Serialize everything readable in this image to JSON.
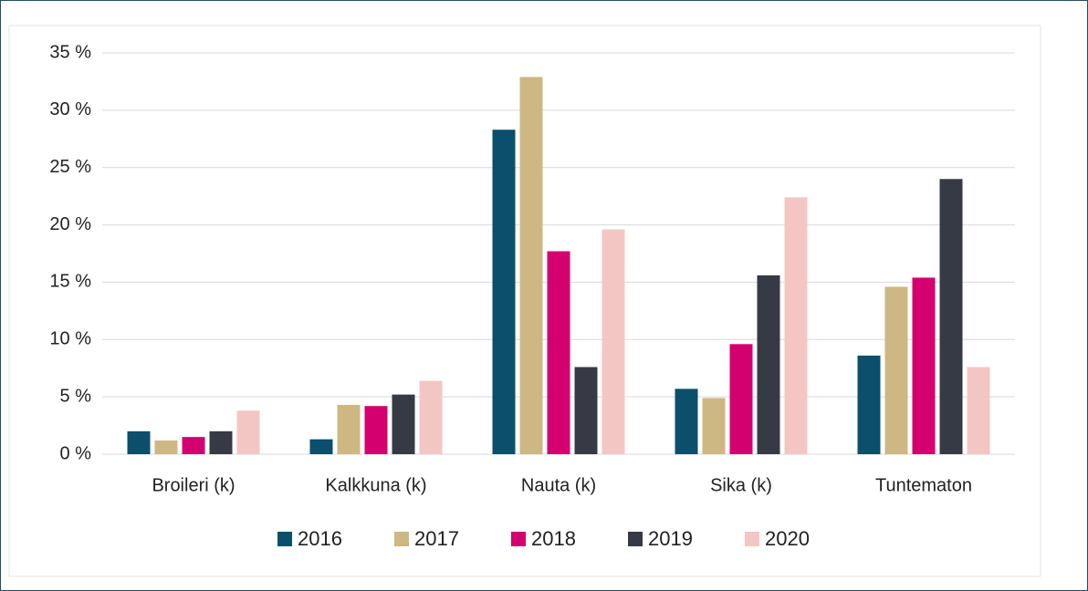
{
  "chart_data": {
    "type": "bar",
    "categories": [
      "Broileri (k)",
      "Kalkkuna (k)",
      "Nauta (k)",
      "Sika (k)",
      "Tuntematon"
    ],
    "series": [
      {
        "name": "2016",
        "color": "#0b4f6c",
        "values": [
          2.0,
          1.3,
          28.3,
          5.7,
          8.6
        ]
      },
      {
        "name": "2017",
        "color": "#cdb883",
        "values": [
          1.2,
          4.3,
          32.9,
          4.9,
          14.6
        ]
      },
      {
        "name": "2018",
        "color": "#d4006f",
        "values": [
          1.5,
          4.2,
          17.7,
          9.6,
          15.4
        ]
      },
      {
        "name": "2019",
        "color": "#353a45",
        "values": [
          2.0,
          5.2,
          7.6,
          15.6,
          24.0
        ]
      },
      {
        "name": "2020",
        "color": "#f4c6c3",
        "values": [
          3.8,
          6.4,
          19.6,
          22.4,
          7.6
        ]
      }
    ],
    "ylim": [
      0,
      35
    ],
    "yticks": [
      {
        "value": 0,
        "label": "0 %"
      },
      {
        "value": 5,
        "label": "5 %"
      },
      {
        "value": 10,
        "label": "10 %"
      },
      {
        "value": 15,
        "label": "15 %"
      },
      {
        "value": 20,
        "label": "20 %"
      },
      {
        "value": 25,
        "label": "25 %"
      },
      {
        "value": 30,
        "label": "30 %"
      },
      {
        "value": 35,
        "label": "35 %"
      }
    ],
    "grid": true,
    "legend": "bottom"
  }
}
